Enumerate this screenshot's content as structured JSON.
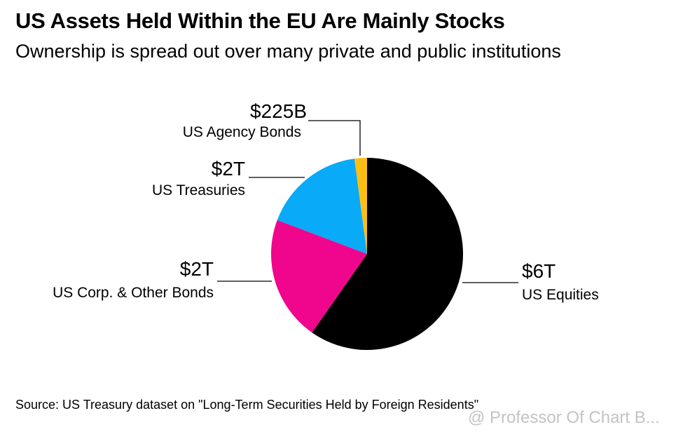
{
  "header": {
    "title": "US Assets Held Within the EU Are Mainly Stocks",
    "subtitle": "Ownership is spread out over many private and public institutions"
  },
  "chart_data": {
    "type": "pie",
    "title": "US Assets Held Within the EU Are Mainly Stocks",
    "subtitle": "Ownership is spread out over many private and public institutions",
    "unit": "USD billions (approx., read from slice angles)",
    "start": "12 o'clock, clockwise",
    "slices": [
      {
        "name": "US Equities",
        "label": "$6T",
        "value": 6400,
        "color": "#000000"
      },
      {
        "name": "US Corp. & Other Bonds",
        "label": "$2T",
        "value": 2250,
        "color": "#f0068c"
      },
      {
        "name": "US Treasuries",
        "label": "$2T",
        "value": 1840,
        "color": "#09aaf8"
      },
      {
        "name": "US Agency Bonds",
        "label": "$225B",
        "value": 225,
        "color": "#fbbf14"
      }
    ]
  },
  "footer": {
    "source": "Source: US Treasury dataset on \"Long-Term Securities Held by Foreign Residents\"",
    "watermark": "@ Professor Of Chart B..."
  }
}
